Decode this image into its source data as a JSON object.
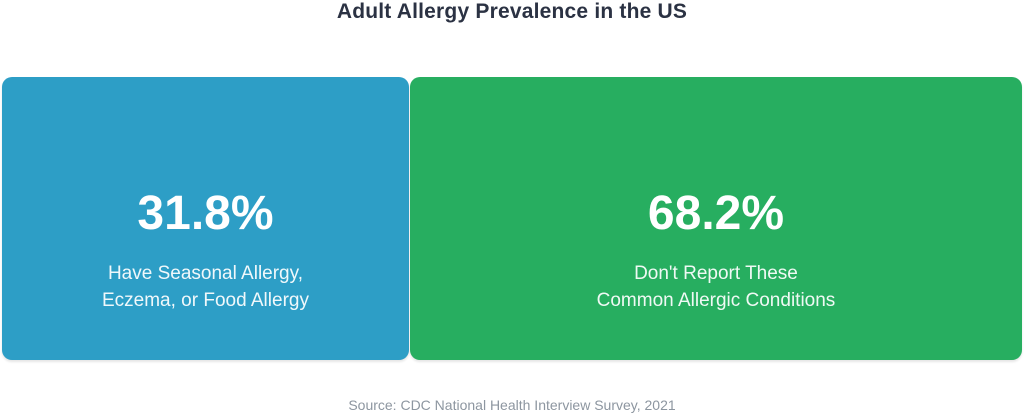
{
  "title": "Adult Allergy Prevalence in the US",
  "source": "Source: CDC National Health Interview Survey, 2021",
  "colors": {
    "segment_blue": "#2d9ec6",
    "segment_green": "#27ae60",
    "title_text": "#2b3243",
    "source_text": "#8d96a0",
    "value_text": "#ffffff"
  },
  "segments": [
    {
      "value_label": "31.8%",
      "label_line1": "Have Seasonal Allergy,",
      "label_line2": "Eczema, or Food Allergy",
      "color": "#2d9ec6"
    },
    {
      "value_label": "68.2%",
      "label_line1": "Don't Report These",
      "label_line2": "Common Allergic Conditions",
      "color": "#27ae60"
    }
  ],
  "chart_data": {
    "type": "bar",
    "title": "Adult Allergy Prevalence in the US",
    "categories": [
      "Have Seasonal Allergy, Eczema, or Food Allergy",
      "Don't Report These Common Allergic Conditions"
    ],
    "values": [
      31.8,
      68.2
    ],
    "unit": "%",
    "series_colors": [
      "#2d9ec6",
      "#27ae60"
    ],
    "orientation": "horizontal-stacked",
    "grid": false,
    "legend_position": "none",
    "annotations": [
      "31.8%",
      "68.2%"
    ],
    "source": "Source: CDC National Health Interview Survey, 2021"
  }
}
